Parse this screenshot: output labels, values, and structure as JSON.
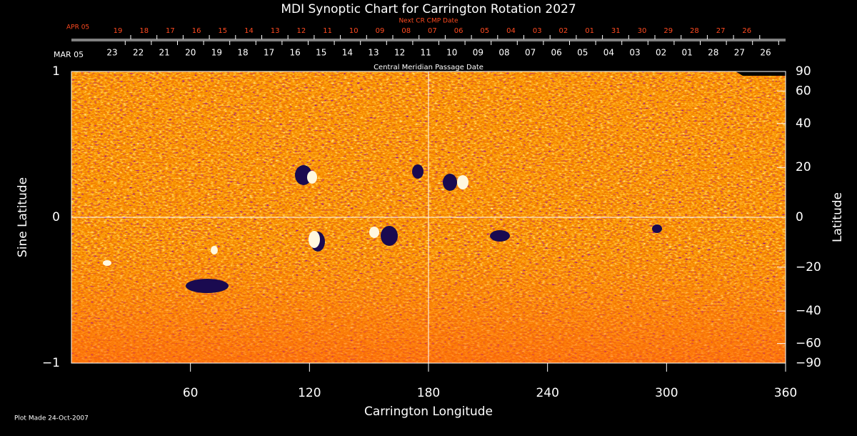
{
  "chart_data": {
    "type": "synoptic-map",
    "title": "MDI Synoptic Chart for Carrington Rotation 2027",
    "xlabel": "Carrington Longitude",
    "ylabel": "Sine Latitude",
    "y2label": "Latitude",
    "xlim": [
      0,
      360
    ],
    "xticks": [
      60,
      120,
      180,
      240,
      300,
      360
    ],
    "ylim": [
      -1,
      1
    ],
    "yticks": [
      {
        "value": -1,
        "label": "−1"
      },
      0,
      1
    ],
    "y2lim": [
      -90,
      90
    ],
    "y2scale": "sine",
    "y2ticks": [
      90,
      60,
      40,
      20,
      0,
      {
        "value": -20,
        "label": "−20"
      },
      {
        "value": -40,
        "label": "−40"
      },
      {
        "value": -60,
        "label": "−60"
      },
      {
        "value": -90,
        "label": "−90"
      }
    ],
    "cmp_axis": {
      "label": "Central Meridian Passage Date",
      "start": "MAR 05",
      "dates": [
        "23",
        "22",
        "21",
        "20",
        "19",
        "18",
        "17",
        "16",
        "15",
        "14",
        "13",
        "12",
        "11",
        "10",
        "09",
        "08",
        "07",
        "06",
        "05",
        "04",
        "03",
        "02",
        "01",
        "28",
        "27",
        "26"
      ]
    },
    "next_cmp_axis": {
      "label": "Next CR CMP Date",
      "start": "APR 05",
      "dates": [
        "19",
        "18",
        "17",
        "16",
        "15",
        "14",
        "13",
        "12",
        "11",
        "10",
        "09",
        "08",
        "07",
        "06",
        "05",
        "04",
        "03",
        "02",
        "01",
        "31",
        "30",
        "29",
        "28",
        "27",
        "26"
      ]
    },
    "footnote": "Plot Made 24-Oct-2007"
  }
}
